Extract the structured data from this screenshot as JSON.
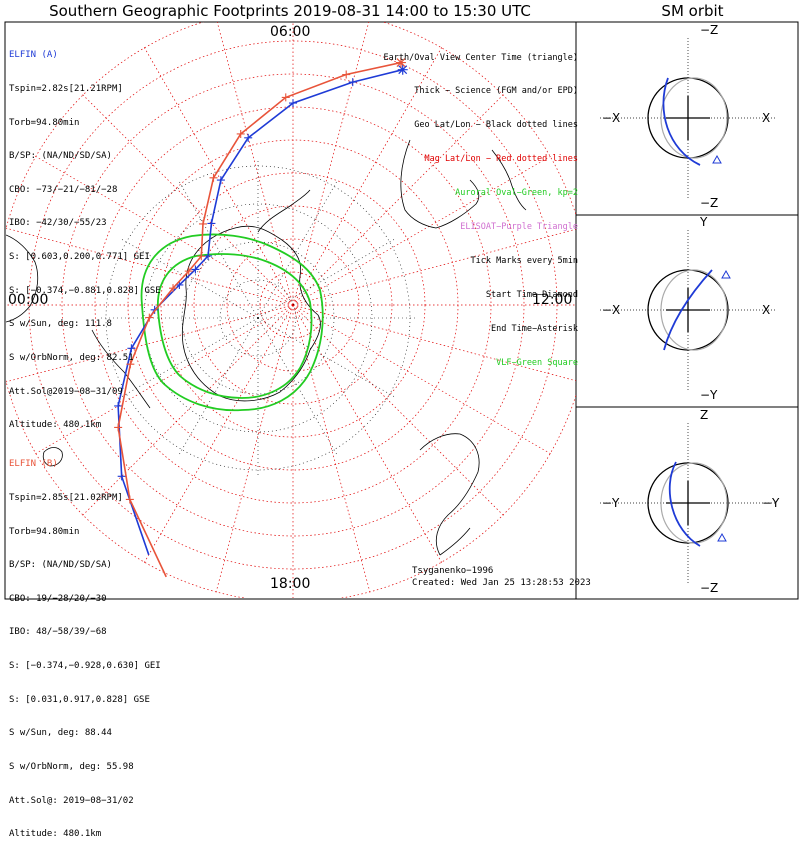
{
  "title": "Southern Geographic Footprints 2019-08-31 14:00 to 15:30 UTC",
  "sm_title": "SM orbit",
  "clock_labels": {
    "top": "06:00",
    "left": "00:00",
    "right": "12:00",
    "bottom": "18:00"
  },
  "elfin_a": {
    "header": "ELFIN (A)",
    "lines": [
      "Tspin=2.82s[21.21RPM]",
      "Torb=94.80min",
      "B/SP: (NA/ND/SD/SA)",
      "CBO: −73/−21/−81/−28",
      "IBO: −42/30/−55/23",
      "S: [0.603,0.200,0.771] GEI",
      "S: [−0.374,−0.881,0.828] GSE",
      "S w/Sun, deg: 111.8",
      "S w/OrbNorm, deg: 82.51",
      "Att.Sol@2019−08−31/09",
      "Altitude: 480.1km"
    ]
  },
  "elfin_b": {
    "header": "ELFIN (B)",
    "lines": [
      "Tspin=2.85s[21.02RPM]",
      "Torb=94.80min",
      "B/SP: (NA/ND/SD/SA)",
      "CBO: 19/−28/20/−30",
      "IBO: 48/−58/39/−68",
      "S: [−0.374,−0.928,0.630] GEI",
      "S: [0.031,0.917,0.828] GSE",
      "S w/Sun, deg: 88.44",
      "S w/OrbNorm, deg: 55.98",
      "Att.Sol@: 2019−08−31/02",
      "Altitude: 480.1km"
    ]
  },
  "legend": [
    {
      "text": "Earth/Oval View Center Time (triangle)",
      "color": "#000000"
    },
    {
      "text": "Thick − Science (FGM and/or EPD)",
      "color": "#000000"
    },
    {
      "text": "Geo Lat/Lon − Black dotted lines",
      "color": "#000000"
    },
    {
      "text": "Mag Lat/Lon − Red dotted lines",
      "color": "#e00000"
    },
    {
      "text": "Auroral Oval−Green, kp=2",
      "color": "#22cc22"
    },
    {
      "text": "ELISOAT−Purple Triangle",
      "color": "#d070d0"
    },
    {
      "text": "Tick Marks every 5min",
      "color": "#000000"
    },
    {
      "text": "Start Time−Diamond",
      "color": "#000000"
    },
    {
      "text": "End Time−Asterisk",
      "color": "#000000"
    },
    {
      "text": "VLF−Green Square",
      "color": "#22cc22"
    }
  ],
  "credit": {
    "model": "Tsyganenko−1996",
    "created": "Created: Wed Jan 25 13:28:53 2023"
  },
  "sm_panels": [
    {
      "top": "−Z",
      "bottom": "−Z",
      "left": "−X",
      "right": "X"
    },
    {
      "top": "Y",
      "bottom": "−Y",
      "left": "−X",
      "right": "X"
    },
    {
      "top": "Z",
      "bottom": "−Z",
      "left": "−Y",
      "right": "−Y"
    }
  ],
  "colors": {
    "elfin_a": "#1f3bd6",
    "elfin_b": "#e8543a",
    "oval": "#22cc22",
    "mag_grid": "#e00000",
    "geo_grid": "#000000",
    "sm_orbit": "#aaaaaa"
  },
  "chart_data": {
    "type": "line",
    "projection": "southern polar stereographic, magnetic local time",
    "mlt_ticks_hours": [
      0,
      6,
      12,
      18
    ],
    "series": [
      {
        "name": "ELFIN (A)",
        "trace": [
          [
            -150,
            -40
          ],
          [
            -135,
            -48
          ],
          [
            -120,
            -55
          ],
          [
            -105,
            -61
          ],
          [
            -92,
            -66
          ],
          [
            -80,
            -70
          ],
          [
            -70,
            -72
          ],
          [
            -60,
            -73
          ],
          [
            -45,
            -70
          ],
          [
            -30,
            -65
          ],
          [
            -15,
            -60
          ],
          [
            0,
            -55
          ],
          [
            15,
            -50
          ],
          [
            25,
            -45
          ]
        ]
      },
      {
        "name": "ELFIN (B)",
        "trace": [
          [
            -155,
            -38
          ],
          [
            -140,
            -46
          ],
          [
            -125,
            -53
          ],
          [
            -110,
            -60
          ],
          [
            -95,
            -65
          ],
          [
            -82,
            -69
          ],
          [
            -72,
            -71
          ],
          [
            -62,
            -72
          ],
          [
            -48,
            -69
          ],
          [
            -32,
            -64
          ],
          [
            -17,
            -59
          ],
          [
            -2,
            -54
          ],
          [
            13,
            -49
          ],
          [
            24,
            -44
          ]
        ]
      }
    ]
  }
}
